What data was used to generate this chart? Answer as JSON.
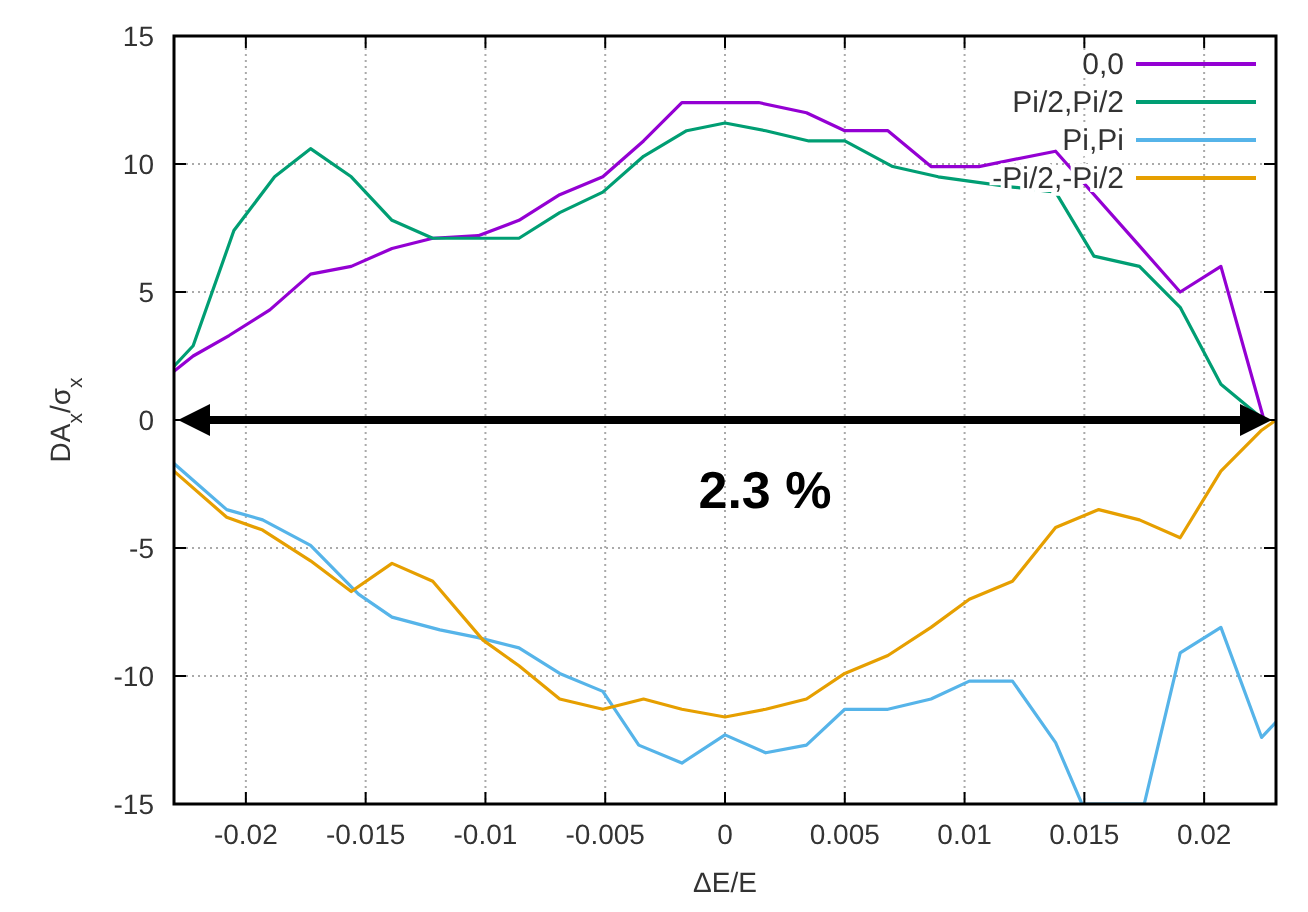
{
  "chart_data": {
    "type": "line",
    "xlabel": "ΔE/E",
    "ylabel": "DA$_{x}$/σ$_{x}$",
    "xlim": [
      -0.023,
      0.023
    ],
    "ylim": [
      -15,
      15
    ],
    "xticks": [
      -0.02,
      -0.015,
      -0.01,
      -0.005,
      0,
      0.005,
      0.01,
      0.015,
      0.02
    ],
    "yticks": [
      -15,
      -10,
      -5,
      0,
      5,
      10,
      15
    ],
    "grid": true,
    "legend": "top right",
    "line_style": "solid",
    "marker": "none",
    "annotations": [
      "2.3 %"
    ],
    "series": [
      {
        "name": "0,0",
        "color": "#9400d3",
        "x": [
          -0.023,
          -0.0222,
          -0.0207,
          -0.019,
          -0.0173,
          -0.0156,
          -0.0139,
          -0.0122,
          -0.0103,
          -0.0086,
          -0.0069,
          -0.0051,
          -0.0034,
          -0.0018,
          0.0014,
          0.0034,
          0.005,
          0.0068,
          0.0086,
          0.0106,
          0.0138,
          0.0173,
          0.019,
          0.0207,
          0.0225
        ],
        "values": [
          1.9,
          2.5,
          3.3,
          4.3,
          5.7,
          6.0,
          6.7,
          7.1,
          7.2,
          7.8,
          8.8,
          9.5,
          10.9,
          12.4,
          12.4,
          12.0,
          11.3,
          11.3,
          9.9,
          9.9,
          10.5,
          6.8,
          5.0,
          6.0,
          0
        ]
      },
      {
        "name": "Pi/2,Pi/2",
        "color": "#009e73",
        "x": [
          -0.023,
          -0.0222,
          -0.0205,
          -0.0188,
          -0.0173,
          -0.0156,
          -0.0139,
          -0.0122,
          -0.0086,
          -0.0069,
          -0.0051,
          -0.0034,
          -0.0016,
          0,
          0.0017,
          0.0035,
          0.005,
          0.007,
          0.0089,
          0.012,
          0.0138,
          0.0154,
          0.0173,
          0.019,
          0.0207,
          0.0225
        ],
        "values": [
          2.1,
          2.9,
          7.4,
          9.5,
          10.6,
          9.5,
          7.8,
          7.1,
          7.1,
          8.1,
          8.9,
          10.3,
          11.3,
          11.6,
          11.3,
          10.9,
          10.9,
          9.9,
          9.5,
          9.1,
          8.9,
          6.4,
          6.0,
          4.4,
          1.4,
          0
        ]
      },
      {
        "name": "Pi,Pi",
        "color": "#56b4e9",
        "x": [
          -0.023,
          -0.0208,
          -0.0193,
          -0.0173,
          -0.0153,
          -0.0139,
          -0.0119,
          -0.0103,
          -0.0086,
          -0.0069,
          -0.0051,
          -0.0036,
          -0.0018,
          0,
          0.0017,
          0.0034,
          0.005,
          0.0068,
          0.0086,
          0.0102,
          0.012,
          0.0138,
          0.0149,
          0.0175,
          0.019,
          0.0207,
          0.0224,
          0.023
        ],
        "values": [
          -1.7,
          -3.5,
          -3.9,
          -4.9,
          -6.8,
          -7.7,
          -8.2,
          -8.5,
          -8.9,
          -9.9,
          -10.6,
          -12.7,
          -13.4,
          -12.3,
          -13.0,
          -12.7,
          -11.3,
          -11.3,
          -10.9,
          -10.2,
          -10.2,
          -12.6,
          -15,
          -15,
          -9.1,
          -8.1,
          -12.4,
          -11.8
        ]
      },
      {
        "name": "-Pi/2,-Pi/2",
        "color": "#e69f00",
        "x": [
          -0.023,
          -0.0208,
          -0.0193,
          -0.0173,
          -0.0156,
          -0.0139,
          -0.0122,
          -0.0101,
          -0.0086,
          -0.0069,
          -0.0051,
          -0.0034,
          -0.0018,
          0,
          0.0017,
          0.0034,
          0.005,
          0.0068,
          0.0086,
          0.0102,
          0.012,
          0.0138,
          0.0156,
          0.0173,
          0.019,
          0.0207,
          0.0224,
          0.023
        ],
        "values": [
          -2.0,
          -3.8,
          -4.3,
          -5.5,
          -6.7,
          -5.6,
          -6.3,
          -8.6,
          -9.6,
          -10.9,
          -11.3,
          -10.9,
          -11.3,
          -11.6,
          -11.3,
          -10.9,
          -9.9,
          -9.2,
          -8.1,
          -7.0,
          -6.3,
          -4.2,
          -3.5,
          -3.9,
          -4.6,
          -2.0,
          -0.4,
          0
        ]
      }
    ]
  }
}
